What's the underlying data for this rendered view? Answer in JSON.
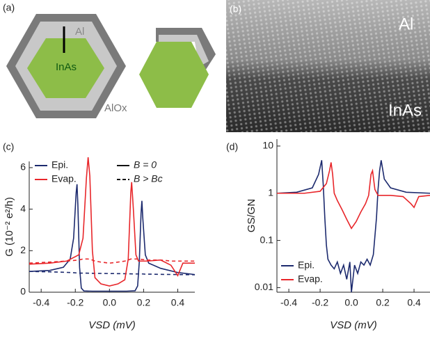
{
  "figure": {
    "panels": [
      "(a)",
      "(b)",
      "(c)",
      "(d)"
    ],
    "diagram_labels": {
      "al": "Al",
      "inas": "InAs",
      "alox": "AlOx"
    },
    "image_labels": {
      "al": "Al",
      "inas": "InAs"
    }
  },
  "chart_data": [
    {
      "type": "line",
      "xlabel": "VSD (mV)",
      "ylabel": "G (10⁻² e²/h)",
      "xlim": [
        -0.47,
        0.5
      ],
      "ylim": [
        0,
        6.3
      ],
      "xticks": [
        -0.4,
        -0.2,
        {
          "value": 0,
          "label": "0.0"
        },
        0.2,
        0.4
      ],
      "yticks": [
        0,
        2,
        4,
        6
      ],
      "style_legend": [
        "B = 0",
        "B > Bc"
      ],
      "series": [
        {
          "name": "Epi.",
          "color": "#1c2a6e",
          "x": [
            -0.47,
            -0.35,
            -0.27,
            -0.23,
            -0.21,
            -0.195,
            -0.19,
            -0.185,
            -0.175,
            -0.165,
            -0.15,
            -0.1,
            0,
            0.1,
            0.15,
            0.165,
            0.175,
            0.185,
            0.19,
            0.195,
            0.21,
            0.23,
            0.3,
            0.4,
            0.5
          ],
          "values": [
            1.0,
            1.05,
            1.2,
            1.6,
            2.6,
            4.8,
            5.2,
            4.2,
            1.2,
            0.2,
            0.06,
            0.05,
            0.05,
            0.05,
            0.07,
            0.3,
            1.5,
            3.8,
            4.4,
            3.6,
            1.8,
            1.4,
            1.15,
            0.95,
            0.85
          ],
          "values_b_above": [
            1.0,
            0.98,
            0.96,
            0.95,
            0.94,
            0.93,
            0.93,
            0.93,
            0.92,
            0.92,
            0.92,
            0.91,
            0.9,
            0.89,
            0.88,
            0.88,
            0.88,
            0.88,
            0.88,
            0.88,
            0.87,
            0.87,
            0.86,
            0.85,
            0.84
          ]
        },
        {
          "name": "Evap.",
          "color": "#e8262a",
          "x": [
            -0.47,
            -0.35,
            -0.25,
            -0.18,
            -0.155,
            -0.135,
            -0.125,
            -0.115,
            -0.1,
            -0.085,
            -0.05,
            0,
            0.05,
            0.09,
            0.11,
            0.125,
            0.13,
            0.14,
            0.155,
            0.17,
            0.22,
            0.3,
            0.36,
            0.4,
            0.43,
            0.5
          ],
          "values": [
            1.35,
            1.4,
            1.5,
            1.8,
            2.6,
            5.5,
            6.5,
            5.6,
            2.0,
            0.7,
            0.4,
            0.3,
            0.4,
            0.6,
            1.6,
            4.8,
            5.3,
            4.0,
            1.8,
            1.5,
            1.5,
            1.55,
            1.3,
            0.8,
            1.4,
            1.4
          ],
          "values_b_above": [
            1.4,
            1.45,
            1.5,
            1.55,
            1.6,
            1.6,
            1.6,
            1.58,
            1.55,
            1.5,
            1.45,
            1.4,
            1.45,
            1.5,
            1.55,
            1.6,
            1.6,
            1.6,
            1.6,
            1.6,
            1.55,
            1.55,
            1.5,
            1.5,
            1.5,
            1.5
          ]
        }
      ]
    },
    {
      "type": "line",
      "xlabel": "VSD (mV)",
      "ylabel": "GS/GN",
      "log_y": true,
      "xlim": [
        -0.476,
        0.502
      ],
      "ylim": [
        0.008,
        14
      ],
      "xticks": [
        -0.4,
        -0.2,
        {
          "value": 0,
          "label": "0.0"
        },
        0.2,
        0.4
      ],
      "yticks": [
        10,
        1,
        0.1,
        0.01
      ],
      "legend": "lower left",
      "series": [
        {
          "name": "Epi.",
          "color": "#1c2a6e",
          "x": [
            -0.476,
            -0.35,
            -0.25,
            -0.21,
            -0.19,
            -0.18,
            -0.17,
            -0.16,
            -0.15,
            -0.13,
            -0.11,
            -0.09,
            -0.07,
            -0.05,
            -0.03,
            -0.01,
            0,
            0.02,
            0.04,
            0.06,
            0.08,
            0.1,
            0.12,
            0.14,
            0.16,
            0.17,
            0.18,
            0.19,
            0.21,
            0.25,
            0.35,
            0.502
          ],
          "values": [
            1.0,
            1.05,
            1.3,
            2.5,
            5.0,
            1.5,
            0.3,
            0.08,
            0.04,
            0.03,
            0.025,
            0.035,
            0.02,
            0.03,
            0.015,
            0.035,
            0.008,
            0.03,
            0.02,
            0.035,
            0.03,
            0.04,
            0.03,
            0.05,
            0.3,
            1.2,
            3.0,
            5.0,
            2.0,
            1.3,
            1.05,
            1.0
          ]
        },
        {
          "name": "Evap.",
          "color": "#e8262a",
          "x": [
            -0.476,
            -0.3,
            -0.2,
            -0.16,
            -0.14,
            -0.13,
            -0.12,
            -0.11,
            -0.09,
            -0.06,
            -0.03,
            0,
            0.03,
            0.06,
            0.09,
            0.11,
            0.125,
            0.135,
            0.15,
            0.17,
            0.25,
            0.33,
            0.38,
            0.4,
            0.43,
            0.502
          ],
          "values": [
            1.0,
            1.0,
            1.1,
            1.6,
            3.0,
            4.5,
            2.5,
            1.0,
            0.7,
            0.45,
            0.28,
            0.18,
            0.25,
            0.4,
            0.6,
            0.9,
            2.5,
            3.0,
            1.2,
            0.9,
            0.9,
            0.85,
            0.6,
            0.5,
            0.85,
            0.9
          ]
        }
      ]
    }
  ]
}
